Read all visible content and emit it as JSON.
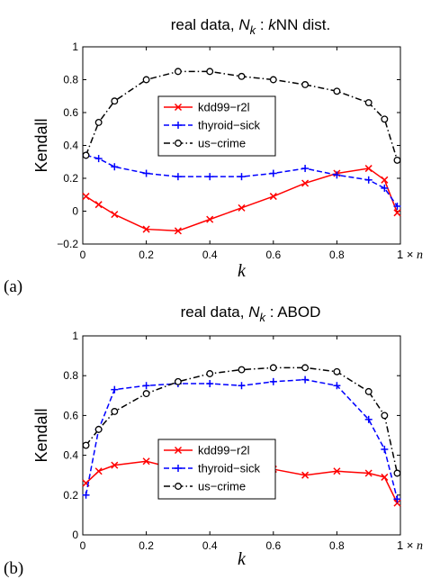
{
  "chart_data": [
    {
      "type": "line",
      "panel_label": "(a)",
      "title": {
        "prefix": "real data, ",
        "var": "N",
        "sub": "k",
        "mid": " : ",
        "kitalic": "k",
        "rest": "NN dist."
      },
      "xlabel": "k",
      "ylabel": "Kendall",
      "x_multiplier": {
        "prefix": "1 × ",
        "var": "n"
      },
      "xlim": [
        0,
        1
      ],
      "ylim": [
        -0.2,
        1
      ],
      "xticks": [
        "0",
        "0.2",
        "0.4",
        "0.6",
        "0.8",
        "1"
      ],
      "yticks": [
        "−0.2",
        "0",
        "0.2",
        "0.4",
        "0.6",
        "0.8",
        "1"
      ],
      "legend": "center",
      "series": [
        {
          "name": "kdd99−r2l",
          "color": "#ff0000",
          "dash": "solid",
          "marker": "x",
          "x": [
            0.01,
            0.05,
            0.1,
            0.2,
            0.3,
            0.4,
            0.5,
            0.6,
            0.7,
            0.8,
            0.9,
            0.95,
            0.99
          ],
          "y": [
            0.09,
            0.04,
            -0.02,
            -0.11,
            -0.12,
            -0.05,
            0.02,
            0.09,
            0.17,
            0.23,
            0.26,
            0.19,
            -0.01
          ]
        },
        {
          "name": "thyroid−sick",
          "color": "#0000ff",
          "dash": "dashed",
          "marker": "plus",
          "x": [
            0.01,
            0.05,
            0.1,
            0.2,
            0.3,
            0.4,
            0.5,
            0.6,
            0.7,
            0.8,
            0.9,
            0.95,
            0.99
          ],
          "y": [
            0.34,
            0.32,
            0.27,
            0.23,
            0.21,
            0.21,
            0.21,
            0.23,
            0.26,
            0.22,
            0.19,
            0.14,
            0.03
          ]
        },
        {
          "name": "us−crime",
          "color": "#000000",
          "dash": "dashdot",
          "marker": "circle",
          "x": [
            0.01,
            0.05,
            0.1,
            0.2,
            0.3,
            0.4,
            0.5,
            0.6,
            0.7,
            0.8,
            0.9,
            0.95,
            0.99
          ],
          "y": [
            0.34,
            0.54,
            0.67,
            0.8,
            0.85,
            0.85,
            0.82,
            0.8,
            0.77,
            0.73,
            0.66,
            0.56,
            0.31
          ]
        }
      ]
    },
    {
      "type": "line",
      "panel_label": "(b)",
      "title": {
        "prefix": "real data, ",
        "var": "N",
        "sub": "k",
        "mid": " : ",
        "kitalic": "",
        "rest": "ABOD"
      },
      "xlabel": "k",
      "ylabel": "Kendall",
      "x_multiplier": {
        "prefix": "1 × ",
        "var": "n"
      },
      "xlim": [
        0,
        1
      ],
      "ylim": [
        0,
        1
      ],
      "xticks": [
        "0",
        "0.2",
        "0.4",
        "0.6",
        "0.8",
        "1"
      ],
      "yticks": [
        "0",
        "0.2",
        "0.4",
        "0.6",
        "0.8",
        "1"
      ],
      "legend": "lower center",
      "series": [
        {
          "name": "kdd99−r2l",
          "color": "#ff0000",
          "dash": "solid",
          "marker": "x",
          "x": [
            0.01,
            0.05,
            0.1,
            0.2,
            0.3,
            0.4,
            0.5,
            0.6,
            0.7,
            0.8,
            0.9,
            0.95,
            0.99
          ],
          "y": [
            0.26,
            0.32,
            0.35,
            0.37,
            0.33,
            0.33,
            0.32,
            0.33,
            0.3,
            0.32,
            0.31,
            0.29,
            0.16
          ]
        },
        {
          "name": "thyroid−sick",
          "color": "#0000ff",
          "dash": "dashed",
          "marker": "plus",
          "x": [
            0.01,
            0.05,
            0.1,
            0.2,
            0.3,
            0.4,
            0.5,
            0.6,
            0.7,
            0.8,
            0.9,
            0.95,
            0.99
          ],
          "y": [
            0.2,
            0.53,
            0.73,
            0.75,
            0.76,
            0.76,
            0.75,
            0.77,
            0.78,
            0.75,
            0.58,
            0.43,
            0.18
          ]
        },
        {
          "name": "us−crime",
          "color": "#000000",
          "dash": "dashdot",
          "marker": "circle",
          "x": [
            0.01,
            0.05,
            0.1,
            0.2,
            0.3,
            0.4,
            0.5,
            0.6,
            0.7,
            0.8,
            0.9,
            0.95,
            0.99
          ],
          "y": [
            0.45,
            0.53,
            0.62,
            0.71,
            0.77,
            0.81,
            0.83,
            0.84,
            0.84,
            0.82,
            0.72,
            0.6,
            0.31
          ]
        }
      ]
    }
  ]
}
